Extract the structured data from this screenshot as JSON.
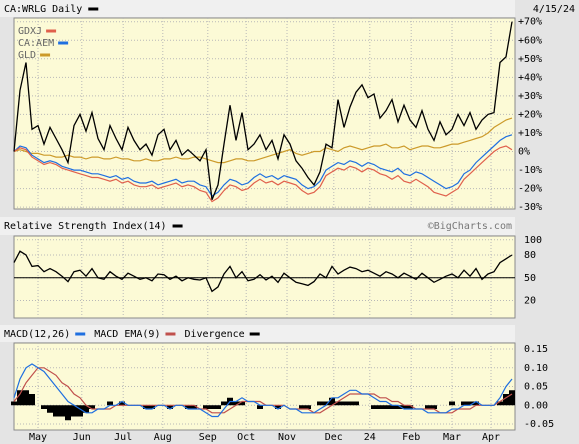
{
  "chart_data": [
    {
      "type": "line",
      "title": "CA:WRLG Daily",
      "date": "4/15/24",
      "annotation": "©BigCharts.com",
      "xlim": [
        0,
        83
      ],
      "ylim": [
        -31,
        72
      ],
      "grid": true,
      "yticks": [
        {
          "value": 70,
          "label": "+70%"
        },
        {
          "value": 60,
          "label": "+60%"
        },
        {
          "value": 50,
          "label": "+50%"
        },
        {
          "value": 40,
          "label": "+40%"
        },
        {
          "value": 30,
          "label": "+30%"
        },
        {
          "value": 20,
          "label": "+20%"
        },
        {
          "value": 10,
          "label": "+10%"
        },
        {
          "value": 0,
          "label": "0%"
        },
        {
          "value": -10,
          "label": "-10%"
        },
        {
          "value": -20,
          "label": "-20%"
        },
        {
          "value": -30,
          "label": "-30%"
        }
      ],
      "series": [
        {
          "color": "#000000",
          "values": [
            0,
            33,
            48,
            12,
            14,
            4,
            13,
            7,
            1,
            -6,
            14,
            20,
            11,
            21,
            7,
            1,
            14,
            7,
            1,
            13,
            6,
            1,
            4,
            -2,
            9,
            12,
            1,
            6,
            -2,
            1,
            -2,
            -5,
            1,
            -26,
            -18,
            4,
            25,
            6,
            21,
            1,
            4,
            9,
            1,
            6,
            -4,
            9,
            4,
            -5,
            -9,
            -14,
            -18,
            -11,
            4,
            2,
            28,
            13,
            24,
            32,
            36,
            29,
            31,
            18,
            22,
            28,
            16,
            25,
            17,
            13,
            22,
            12,
            6,
            16,
            9,
            12,
            20,
            14,
            21,
            12,
            17,
            20,
            21,
            48,
            51,
            70
          ]
        },
        {
          "name": "GDXJ",
          "color": "#e0604c",
          "values": [
            0,
            2,
            1,
            -3,
            -5,
            -7,
            -6,
            -7,
            -9,
            -10,
            -11,
            -12,
            -13,
            -14,
            -14,
            -15,
            -16,
            -15,
            -17,
            -16,
            -18,
            -19,
            -19,
            -18,
            -20,
            -19,
            -18,
            -17,
            -19,
            -18,
            -19,
            -21,
            -22,
            -27,
            -25,
            -21,
            -18,
            -19,
            -21,
            -20,
            -17,
            -15,
            -17,
            -16,
            -18,
            -16,
            -17,
            -18,
            -21,
            -23,
            -22,
            -19,
            -13,
            -11,
            -9,
            -10,
            -8,
            -9,
            -11,
            -9,
            -10,
            -12,
            -13,
            -15,
            -13,
            -16,
            -17,
            -15,
            -17,
            -19,
            -22,
            -23,
            -24,
            -22,
            -20,
            -15,
            -12,
            -9,
            -6,
            -3,
            0,
            2,
            3,
            1
          ]
        },
        {
          "name": "CA:AEM",
          "color": "#1f6fe0",
          "values": [
            0,
            3,
            2,
            -2,
            -4,
            -6,
            -5,
            -6,
            -8,
            -9,
            -10,
            -10,
            -11,
            -12,
            -12,
            -13,
            -14,
            -13,
            -15,
            -14,
            -16,
            -17,
            -17,
            -16,
            -18,
            -17,
            -16,
            -15,
            -17,
            -16,
            -16,
            -18,
            -19,
            -24,
            -22,
            -18,
            -15,
            -16,
            -18,
            -17,
            -14,
            -12,
            -14,
            -13,
            -15,
            -13,
            -14,
            -15,
            -18,
            -20,
            -19,
            -16,
            -10,
            -8,
            -6,
            -7,
            -5,
            -6,
            -8,
            -6,
            -7,
            -9,
            -10,
            -11,
            -9,
            -12,
            -13,
            -11,
            -12,
            -14,
            -16,
            -18,
            -20,
            -19,
            -17,
            -12,
            -10,
            -6,
            -3,
            0,
            3,
            6,
            8,
            9
          ]
        },
        {
          "name": "GLD",
          "color": "#cc9a2a",
          "values": [
            0,
            1,
            0,
            -1,
            -1,
            -2,
            -2,
            -3,
            -3,
            -2,
            -3,
            -3,
            -4,
            -3,
            -3,
            -4,
            -4,
            -3,
            -4,
            -4,
            -5,
            -5,
            -4,
            -5,
            -5,
            -4,
            -4,
            -3,
            -4,
            -4,
            -3,
            -3,
            -4,
            -5,
            -6,
            -6,
            -5,
            -4,
            -4,
            -5,
            -5,
            -4,
            -3,
            -2,
            -1,
            0,
            1,
            -1,
            -2,
            -1,
            0,
            0,
            2,
            1,
            0,
            2,
            3,
            2,
            1,
            2,
            3,
            3,
            4,
            2,
            2,
            3,
            1,
            2,
            3,
            3,
            2,
            2,
            3,
            4,
            4,
            5,
            6,
            7,
            8,
            10,
            13,
            15,
            17,
            18
          ]
        }
      ]
    },
    {
      "type": "line",
      "title": "Relative Strength Index(14)",
      "xlim": [
        0,
        83
      ],
      "ylim": [
        -3,
        105
      ],
      "yticks": [
        100,
        80,
        50,
        20
      ],
      "reference_line": 50,
      "grid": true,
      "series": [
        {
          "color": "#000000",
          "values": [
            70,
            85,
            80,
            65,
            66,
            58,
            62,
            58,
            52,
            45,
            58,
            60,
            52,
            62,
            50,
            48,
            58,
            52,
            48,
            56,
            52,
            48,
            50,
            46,
            55,
            54,
            48,
            52,
            46,
            50,
            48,
            47,
            50,
            32,
            38,
            55,
            65,
            50,
            58,
            46,
            48,
            54,
            47,
            52,
            44,
            56,
            50,
            44,
            42,
            40,
            45,
            55,
            50,
            65,
            55,
            60,
            64,
            62,
            58,
            60,
            56,
            52,
            58,
            55,
            50,
            56,
            52,
            48,
            56,
            50,
            44,
            48,
            52,
            55,
            50,
            60,
            52,
            62,
            48,
            55,
            58,
            70,
            75,
            80
          ]
        }
      ]
    },
    {
      "type": "line",
      "xlim": [
        0,
        83
      ],
      "ylim": [
        -0.066,
        0.166
      ],
      "grid": true,
      "yticks": [
        0.15,
        {
          "value": 0.1,
          "label": "0.10"
        },
        0.05,
        {
          "value": 0,
          "label": "0.00"
        },
        -0.05
      ],
      "xticks": [
        {
          "value": 4,
          "label": "May"
        },
        {
          "value": 11.3,
          "label": "Jun"
        },
        {
          "value": 18.2,
          "label": "Jul"
        },
        {
          "value": 24.8,
          "label": "Aug"
        },
        {
          "value": 32.3,
          "label": "Sep"
        },
        {
          "value": 38.7,
          "label": "Oct"
        },
        {
          "value": 45.5,
          "label": "Nov"
        },
        {
          "value": 53.3,
          "label": "Dec"
        },
        {
          "value": 59.3,
          "label": "24"
        },
        {
          "value": 66.2,
          "label": "Feb"
        },
        {
          "value": 73,
          "label": "Mar"
        },
        {
          "value": 79.5,
          "label": "Apr"
        }
      ],
      "series": [
        {
          "name": "MACD(12,26)",
          "color": "#1f6fe0",
          "values": [
            0.02,
            0.07,
            0.1,
            0.11,
            0.1,
            0.09,
            0.07,
            0.05,
            0.03,
            0.01,
            0,
            -0.01,
            -0.02,
            -0.02,
            -0.01,
            -0.01,
            0,
            0,
            0.01,
            0,
            0,
            0,
            -0.01,
            -0.01,
            0,
            0,
            -0.01,
            0,
            0,
            -0.01,
            -0.01,
            -0.01,
            -0.02,
            -0.03,
            -0.03,
            -0.01,
            0.01,
            0.01,
            0.02,
            0.01,
            0.01,
            0,
            0,
            0,
            -0.01,
            0,
            -0.01,
            -0.01,
            -0.02,
            -0.02,
            -0.02,
            -0.01,
            0,
            0.02,
            0.02,
            0.03,
            0.04,
            0.04,
            0.03,
            0.03,
            0.02,
            0.01,
            0.01,
            0,
            0,
            -0.01,
            -0.01,
            -0.01,
            -0.01,
            -0.02,
            -0.02,
            -0.02,
            -0.02,
            -0.01,
            -0.01,
            0,
            0,
            0.01,
            0,
            0,
            0,
            0.02,
            0.05,
            0.07
          ]
        },
        {
          "name": "MACD EMA(9)",
          "color": "#c0504d",
          "values": [
            0.01,
            0.03,
            0.06,
            0.08,
            0.1,
            0.1,
            0.09,
            0.08,
            0.06,
            0.05,
            0.03,
            0.02,
            0,
            -0.01,
            -0.01,
            -0.01,
            -0.01,
            0,
            0,
            0,
            0,
            0,
            0,
            0,
            0,
            0,
            0,
            0,
            0,
            0,
            0,
            -0.01,
            -0.01,
            -0.02,
            -0.02,
            -0.02,
            -0.01,
            0,
            0.01,
            0.01,
            0.01,
            0.01,
            0,
            0,
            0,
            0,
            -0.01,
            -0.01,
            -0.01,
            -0.01,
            -0.02,
            -0.02,
            -0.01,
            0,
            0.01,
            0.02,
            0.03,
            0.03,
            0.03,
            0.03,
            0.03,
            0.02,
            0.02,
            0.01,
            0.01,
            0,
            0,
            -0.01,
            -0.01,
            -0.01,
            -0.01,
            -0.02,
            -0.02,
            -0.02,
            -0.01,
            -0.01,
            -0.01,
            0,
            0,
            0,
            0,
            0.01,
            0.02,
            0.03
          ]
        },
        {
          "name": "Divergence",
          "type": "bar",
          "color": "#000000",
          "values": [
            0.01,
            0.04,
            0.04,
            0.03,
            0,
            -0.01,
            -0.02,
            -0.03,
            -0.03,
            -0.04,
            -0.03,
            -0.03,
            -0.02,
            -0.01,
            0,
            0,
            0.01,
            0,
            0.01,
            0,
            0,
            0,
            -0.01,
            -0.01,
            0,
            0,
            -0.01,
            0,
            0,
            -0.01,
            -0.01,
            0,
            -0.01,
            -0.01,
            -0.01,
            0.01,
            0.02,
            0.01,
            0.01,
            0,
            0,
            -0.01,
            0,
            0,
            -0.01,
            0,
            0,
            0,
            -0.01,
            -0.01,
            0,
            0.01,
            0.01,
            0.02,
            0.01,
            0.01,
            0.01,
            0.01,
            0,
            0,
            -0.01,
            -0.01,
            -0.01,
            -0.01,
            -0.01,
            -0.01,
            -0.01,
            0,
            0,
            -0.01,
            -0.01,
            0,
            0,
            0.01,
            0,
            0.01,
            0.01,
            0.01,
            0,
            0,
            0,
            0.01,
            0.03,
            0.04
          ]
        }
      ]
    }
  ]
}
